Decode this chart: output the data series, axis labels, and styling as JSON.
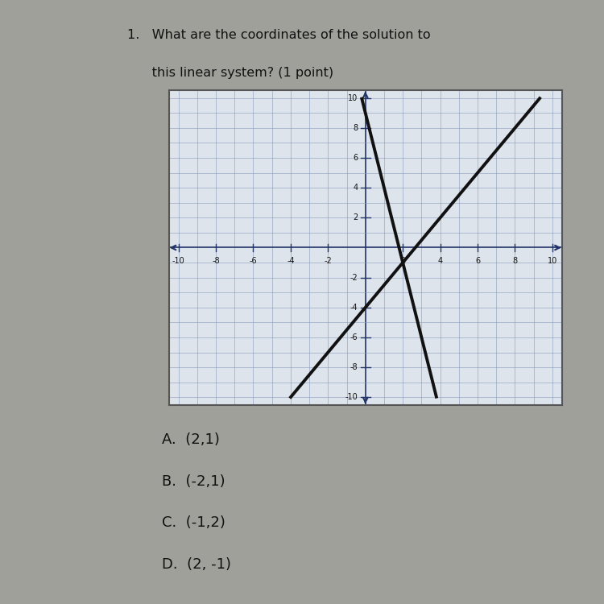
{
  "title_line1": "1.   What are the coordinates of the solution to",
  "title_line2": "      this linear system? (1 point)",
  "xmin": -10,
  "xmax": 10,
  "ymin": -10,
  "ymax": 10,
  "xtick_labels": [
    "-10",
    "-8",
    "-6",
    "-4",
    "-2",
    "2",
    "4",
    "6",
    "8",
    "10"
  ],
  "xtick_vals": [
    -10,
    -8,
    -6,
    -4,
    -2,
    2,
    4,
    6,
    8,
    10
  ],
  "ytick_labels": [
    "-10",
    "-8",
    "-6",
    "-4",
    "-2",
    "2",
    "4",
    "6",
    "8",
    "10"
  ],
  "ytick_vals": [
    -10,
    -8,
    -6,
    -4,
    -2,
    2,
    4,
    6,
    8,
    10
  ],
  "line1_slope": -5,
  "line1_intercept": 9,
  "line2_slope": 1.5,
  "line2_intercept": -4,
  "choices": [
    "A.  (2,1)",
    "B.  (-2,1)",
    "C.  (-1,2)",
    "D.  (2, -1)"
  ],
  "outer_bg": "#a0a09a",
  "paper_bg": "#d4d0c8",
  "graph_bg": "#dde4ec",
  "grid_color": "#8899bb",
  "axis_color": "#223366",
  "line_color": "#111111",
  "text_color": "#111111",
  "border_color": "#555555",
  "shadow_color": "#707070",
  "title_fontsize": 11.5,
  "tick_fontsize": 7,
  "choice_fontsize": 13
}
